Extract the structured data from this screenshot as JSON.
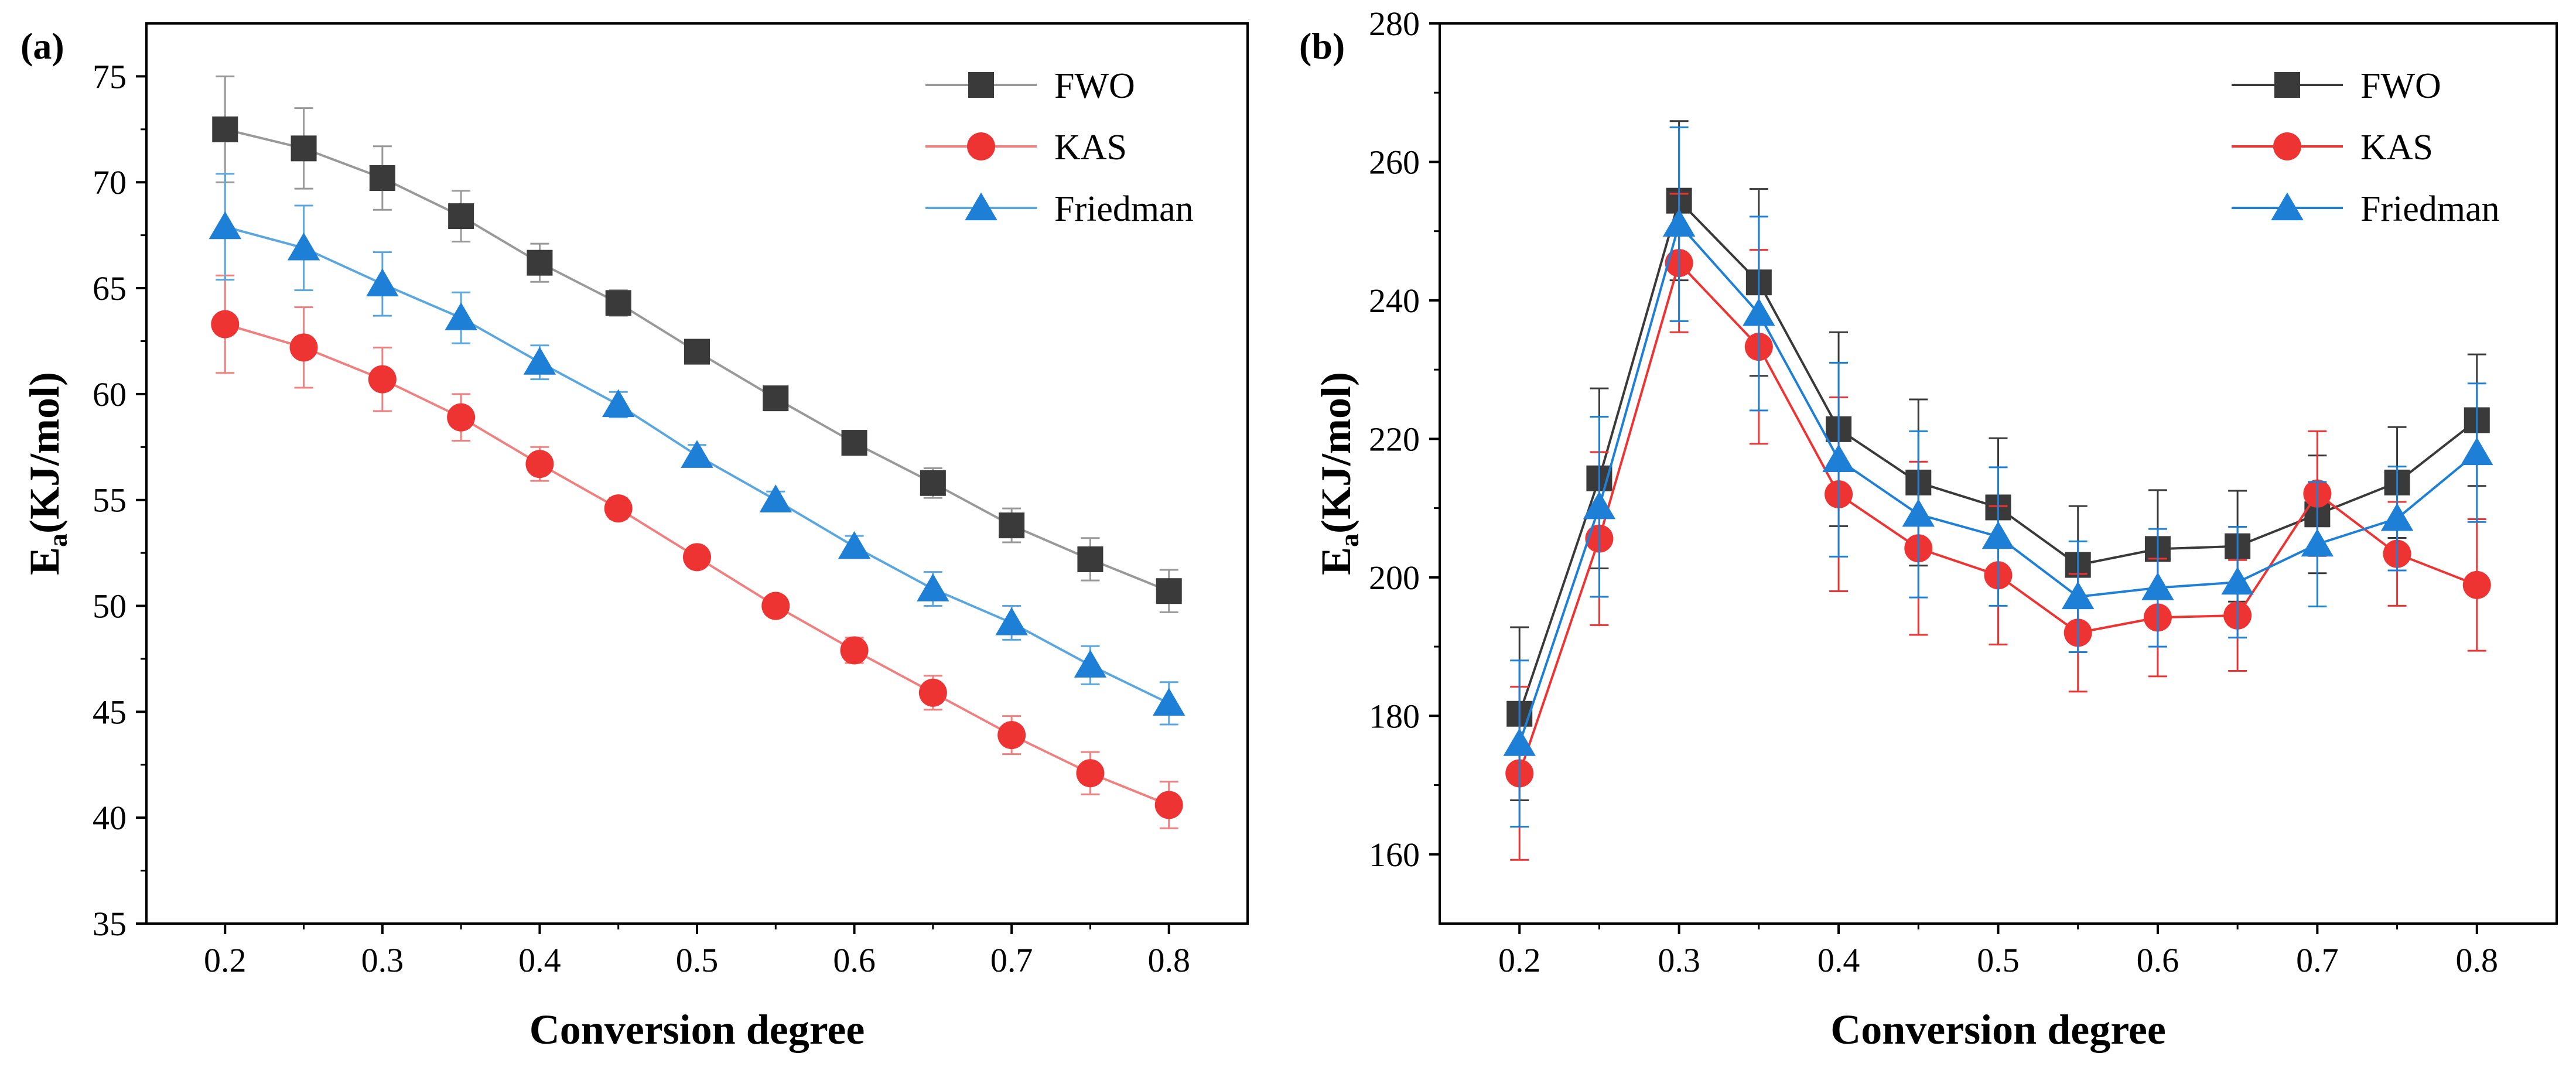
{
  "chart_data": [
    {
      "type": "line",
      "panel_label": "(a)",
      "xlabel": "Conversion degree",
      "ylabel_main": "E",
      "ylabel_sub": "a",
      "ylabel_rest": "(KJ/mol)",
      "xlim": [
        0.15,
        0.85
      ],
      "ylim": [
        35,
        77.5
      ],
      "xticks": [
        0.2,
        0.3,
        0.4,
        0.5,
        0.6,
        0.7,
        0.8
      ],
      "xtick_labels": [
        "0.2",
        "0.3",
        "0.4",
        "0.5",
        "0.6",
        "0.7",
        "0.8"
      ],
      "yticks": [
        35,
        40,
        45,
        50,
        55,
        60,
        65,
        70,
        75
      ],
      "ytick_labels": [
        "35",
        "40",
        "45",
        "50",
        "55",
        "60",
        "65",
        "70",
        "75"
      ],
      "legend_position": "top-right",
      "x": [
        0.2,
        0.25,
        0.3,
        0.35,
        0.4,
        0.45,
        0.5,
        0.55,
        0.6,
        0.65,
        0.7,
        0.75,
        0.8
      ],
      "series": [
        {
          "name": "FWO",
          "marker": "square",
          "line_color": "#999999",
          "marker_color": "#3a3a3a",
          "values": [
            72.5,
            71.6,
            70.2,
            68.4,
            66.2,
            64.3,
            62.0,
            59.8,
            57.7,
            55.8,
            53.8,
            52.2,
            50.7
          ],
          "errors": [
            2.5,
            1.9,
            1.5,
            1.2,
            0.9,
            0.6,
            0.4,
            0.4,
            0.4,
            0.7,
            0.8,
            1.0,
            1.0
          ]
        },
        {
          "name": "KAS",
          "marker": "circle",
          "line_color": "#f08080",
          "marker_color": "#ee3333",
          "values": [
            63.3,
            62.2,
            60.7,
            58.9,
            56.7,
            54.6,
            52.3,
            50.0,
            47.9,
            45.9,
            43.9,
            42.1,
            40.6
          ],
          "errors": [
            2.3,
            1.9,
            1.5,
            1.1,
            0.8,
            0.5,
            0.4,
            0.4,
            0.6,
            0.8,
            0.9,
            1.0,
            1.1
          ]
        },
        {
          "name": "Friedman",
          "marker": "triangle",
          "line_color": "#5aa7e0",
          "marker_color": "#1e7fd6",
          "values": [
            67.9,
            66.9,
            65.2,
            63.6,
            61.5,
            59.5,
            57.1,
            55.0,
            52.8,
            50.8,
            49.2,
            47.2,
            45.4
          ],
          "errors": [
            2.5,
            2.0,
            1.5,
            1.2,
            0.8,
            0.6,
            0.5,
            0.4,
            0.5,
            0.8,
            0.8,
            0.9,
            1.0
          ]
        }
      ]
    },
    {
      "type": "line",
      "panel_label": "(b)",
      "xlabel": "Conversion degree",
      "ylabel_main": "E",
      "ylabel_sub": "a",
      "ylabel_rest": "(KJ/mol)",
      "xlim": [
        0.15,
        0.85
      ],
      "ylim": [
        150,
        280
      ],
      "xticks": [
        0.2,
        0.3,
        0.4,
        0.5,
        0.6,
        0.7,
        0.8
      ],
      "xtick_labels": [
        "0.2",
        "0.3",
        "0.4",
        "0.5",
        "0.6",
        "0.7",
        "0.8"
      ],
      "yticks": [
        160,
        180,
        200,
        220,
        240,
        260,
        280
      ],
      "ytick_labels": [
        "160",
        "180",
        "200",
        "220",
        "240",
        "260",
        "280"
      ],
      "legend_position": "top-right",
      "x": [
        0.2,
        0.25,
        0.3,
        0.35,
        0.4,
        0.45,
        0.5,
        0.55,
        0.6,
        0.65,
        0.7,
        0.75,
        0.8
      ],
      "series": [
        {
          "name": "FWO",
          "marker": "square",
          "line_color": "#3a3a3a",
          "marker_color": "#3a3a3a",
          "values": [
            180.3,
            214.3,
            254.4,
            242.6,
            221.4,
            213.7,
            210.1,
            201.8,
            204.1,
            204.5,
            209.1,
            213.7,
            222.7
          ],
          "errors": [
            12.5,
            13.0,
            11.5,
            13.5,
            14.0,
            12.0,
            10.0,
            8.5,
            8.5,
            8.0,
            8.5,
            8.0,
            9.5
          ]
        },
        {
          "name": "KAS",
          "marker": "circle",
          "line_color": "#ee3333",
          "marker_color": "#ee3333",
          "values": [
            171.7,
            205.6,
            245.4,
            233.3,
            212.0,
            204.2,
            200.3,
            192.0,
            194.2,
            194.5,
            212.1,
            203.4,
            198.9
          ],
          "errors": [
            12.5,
            12.5,
            10.0,
            14.0,
            14.0,
            12.5,
            10.0,
            8.5,
            8.5,
            8.0,
            9.0,
            7.5,
            9.5
          ]
        },
        {
          "name": "Friedman",
          "marker": "triangle",
          "line_color": "#1e7fd6",
          "marker_color": "#1e7fd6",
          "values": [
            176.0,
            210.2,
            251.0,
            238.1,
            217.0,
            209.1,
            205.9,
            197.2,
            198.5,
            199.3,
            204.8,
            208.5,
            218.0
          ],
          "errors": [
            12.0,
            13.0,
            14.0,
            14.0,
            14.0,
            12.0,
            10.0,
            8.0,
            8.5,
            8.0,
            9.0,
            7.5,
            10.0
          ]
        }
      ]
    }
  ]
}
